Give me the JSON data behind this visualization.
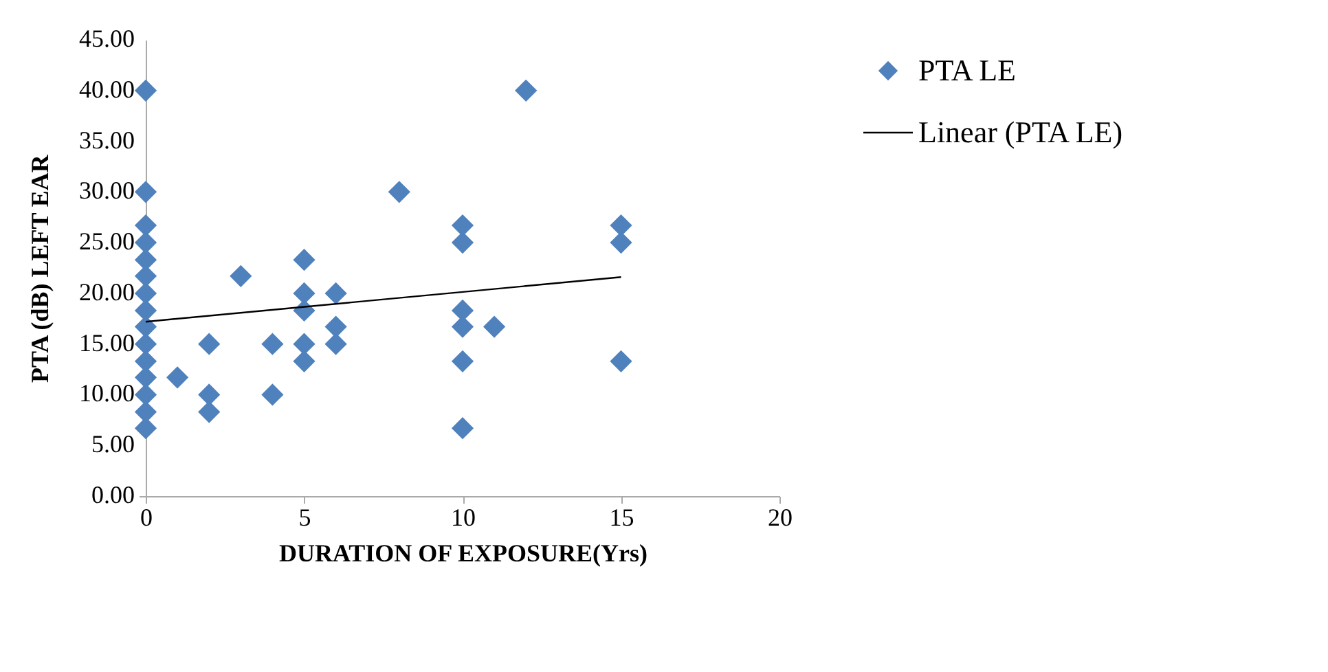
{
  "chart_data": {
    "type": "scatter",
    "xlabel": "DURATION OF EXPOSURE(Yrs)",
    "ylabel": "PTA (dB) LEFT EAR",
    "xlim": [
      0,
      20
    ],
    "xticks": [
      0,
      5,
      10,
      15,
      20
    ],
    "ylim": [
      0,
      45
    ],
    "yticks": [
      {
        "value": 0,
        "label": "0.00"
      },
      {
        "value": 5,
        "label": "5.00"
      },
      {
        "value": 10,
        "label": "10.00"
      },
      {
        "value": 15,
        "label": "15.00"
      },
      {
        "value": 20,
        "label": "20.00"
      },
      {
        "value": 25,
        "label": "25.00"
      },
      {
        "value": 30,
        "label": "30.00"
      },
      {
        "value": 35,
        "label": "35.00"
      },
      {
        "value": 40,
        "label": "40.00"
      },
      {
        "value": 45,
        "label": "45.00"
      }
    ],
    "grid": false,
    "legend": "right",
    "marker": "diamond",
    "series": [
      {
        "name": "PTA LE",
        "color": "#4f81bd",
        "x": [
          0,
          0,
          0,
          0,
          0,
          0,
          0,
          0,
          0,
          0,
          0,
          0,
          0,
          0,
          0,
          1,
          2,
          2,
          2,
          3,
          4,
          4,
          5,
          5,
          5,
          5,
          5,
          6,
          6,
          6,
          8,
          10,
          10,
          10,
          10,
          10,
          10,
          11,
          12,
          15,
          15,
          15
        ],
        "values": [
          40,
          30,
          26.7,
          25,
          23.3,
          21.7,
          20,
          18.3,
          16.7,
          15,
          13.3,
          11.7,
          10,
          8.3,
          6.7,
          11.7,
          15,
          10,
          8.3,
          21.7,
          15,
          10,
          23.3,
          20,
          18.3,
          15,
          13.3,
          20,
          16.7,
          15,
          30,
          26.7,
          25,
          18.3,
          16.7,
          13.3,
          6.7,
          16.7,
          40,
          26.7,
          25,
          13.3
        ]
      },
      {
        "name": "Linear (PTA LE)",
        "type": "line",
        "color": "#000000",
        "marker": "none",
        "line_style": "solid",
        "x": [
          0,
          15
        ],
        "values": [
          17.2,
          21.6
        ]
      }
    ]
  }
}
